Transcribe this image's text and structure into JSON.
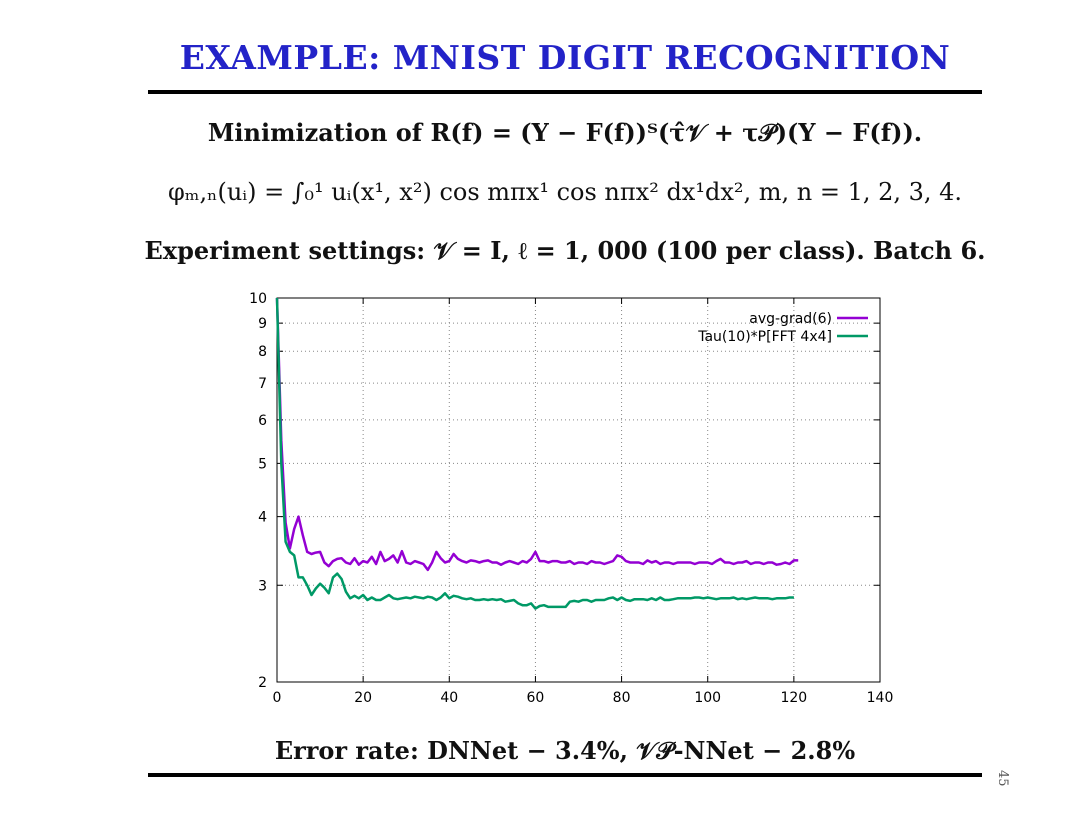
{
  "slide": {
    "title": "EXAMPLE: MNIST DIGIT RECOGNITION",
    "line1": "Minimization of R(f) = (Y − F(f))ᵀ(τ̂𝒱 + τ𝒫)(Y − F(f)).",
    "line2": "φₘ,ₙ(uᵢ) = ∫₀¹ uᵢ(x¹, x²) cos mπx¹ cos nπx² dx¹dx²,   m, n = 1, 2, 3, 4.",
    "line3": "Experiment settings: 𝒱 = I, ℓ = 1, 000 (100 per class). Batch 6.",
    "footer": "Error rate: DNNet − 3.4%,        𝒱𝒫-NNet − 2.8%",
    "page_number": "45"
  },
  "chart_data": {
    "type": "line",
    "xlim": [
      0,
      140
    ],
    "ylim": [
      2,
      10
    ],
    "y_scale": "log",
    "x_ticks": [
      "0",
      "20",
      "40",
      "60",
      "80",
      "100",
      "120",
      "140"
    ],
    "y_ticks": [
      "2",
      "3",
      "4",
      "5",
      "6",
      "7",
      "8",
      "9",
      "10"
    ],
    "grid": true,
    "legend_position": "top-right",
    "series": [
      {
        "name": "avg-grad(6)",
        "color": "#9400d3",
        "x": [
          0,
          1,
          2,
          3,
          4,
          5,
          6,
          7,
          8,
          9,
          10,
          11,
          12,
          13,
          14,
          15,
          16,
          17,
          18,
          19,
          20,
          21,
          22,
          23,
          24,
          25,
          26,
          27,
          28,
          29,
          30,
          31,
          32,
          33,
          34,
          35,
          36,
          37,
          38,
          39,
          40,
          41,
          42,
          43,
          44,
          45,
          46,
          47,
          48,
          49,
          50,
          51,
          52,
          53,
          54,
          55,
          56,
          57,
          58,
          59,
          60,
          61,
          62,
          63,
          64,
          65,
          66,
          67,
          68,
          69,
          70,
          71,
          72,
          73,
          74,
          75,
          76,
          77,
          78,
          79,
          80,
          81,
          82,
          83,
          84,
          85,
          86,
          87,
          88,
          89,
          90,
          91,
          92,
          93,
          94,
          95,
          96,
          97,
          98,
          99,
          100,
          101,
          102,
          103,
          104,
          105,
          106,
          107,
          108,
          109,
          110,
          111,
          112,
          113,
          114,
          115,
          116,
          117,
          118,
          119,
          120,
          121
        ],
        "y": [
          10,
          5.5,
          3.9,
          3.5,
          3.8,
          4.0,
          3.7,
          3.45,
          3.42,
          3.44,
          3.45,
          3.3,
          3.25,
          3.32,
          3.35,
          3.36,
          3.3,
          3.28,
          3.36,
          3.27,
          3.32,
          3.3,
          3.38,
          3.28,
          3.45,
          3.32,
          3.35,
          3.4,
          3.3,
          3.46,
          3.3,
          3.28,
          3.32,
          3.3,
          3.28,
          3.2,
          3.3,
          3.45,
          3.36,
          3.3,
          3.32,
          3.42,
          3.35,
          3.32,
          3.3,
          3.33,
          3.32,
          3.3,
          3.32,
          3.33,
          3.3,
          3.3,
          3.27,
          3.3,
          3.32,
          3.3,
          3.28,
          3.32,
          3.3,
          3.35,
          3.45,
          3.32,
          3.32,
          3.3,
          3.32,
          3.32,
          3.3,
          3.3,
          3.32,
          3.28,
          3.3,
          3.3,
          3.28,
          3.32,
          3.3,
          3.3,
          3.28,
          3.3,
          3.32,
          3.4,
          3.38,
          3.32,
          3.3,
          3.3,
          3.3,
          3.28,
          3.33,
          3.3,
          3.32,
          3.28,
          3.3,
          3.3,
          3.28,
          3.3,
          3.3,
          3.3,
          3.3,
          3.28,
          3.3,
          3.3,
          3.3,
          3.28,
          3.32,
          3.35,
          3.3,
          3.3,
          3.28,
          3.3,
          3.3,
          3.32,
          3.28,
          3.3,
          3.3,
          3.28,
          3.3,
          3.3,
          3.27,
          3.28,
          3.3,
          3.28,
          3.33,
          3.33
        ]
      },
      {
        "name": "Tau(10)*P[FFT 4x4]",
        "color": "#009966",
        "x": [
          0,
          1,
          2,
          3,
          4,
          5,
          6,
          7,
          8,
          9,
          10,
          11,
          12,
          13,
          14,
          15,
          16,
          17,
          18,
          19,
          20,
          21,
          22,
          23,
          24,
          25,
          26,
          27,
          28,
          29,
          30,
          31,
          32,
          33,
          34,
          35,
          36,
          37,
          38,
          39,
          40,
          41,
          42,
          43,
          44,
          45,
          46,
          47,
          48,
          49,
          50,
          51,
          52,
          53,
          54,
          55,
          56,
          57,
          58,
          59,
          60,
          61,
          62,
          63,
          64,
          65,
          66,
          67,
          68,
          69,
          70,
          71,
          72,
          73,
          74,
          75,
          76,
          77,
          78,
          79,
          80,
          81,
          82,
          83,
          84,
          85,
          86,
          87,
          88,
          89,
          90,
          91,
          92,
          93,
          94,
          95,
          96,
          97,
          98,
          99,
          100,
          101,
          102,
          103,
          104,
          105,
          106,
          107,
          108,
          109,
          110,
          111,
          112,
          113,
          114,
          115,
          116,
          117,
          118,
          119,
          120
        ],
        "y": [
          10,
          5.0,
          3.6,
          3.45,
          3.4,
          3.1,
          3.1,
          3.0,
          2.88,
          2.96,
          3.02,
          2.97,
          2.9,
          3.1,
          3.15,
          3.08,
          2.92,
          2.84,
          2.87,
          2.84,
          2.88,
          2.82,
          2.85,
          2.82,
          2.82,
          2.85,
          2.88,
          2.84,
          2.83,
          2.84,
          2.85,
          2.84,
          2.86,
          2.85,
          2.84,
          2.86,
          2.85,
          2.82,
          2.85,
          2.9,
          2.84,
          2.87,
          2.86,
          2.84,
          2.83,
          2.84,
          2.82,
          2.82,
          2.83,
          2.82,
          2.83,
          2.82,
          2.83,
          2.8,
          2.81,
          2.82,
          2.78,
          2.76,
          2.76,
          2.78,
          2.72,
          2.75,
          2.76,
          2.74,
          2.74,
          2.74,
          2.74,
          2.74,
          2.8,
          2.81,
          2.8,
          2.82,
          2.82,
          2.8,
          2.82,
          2.82,
          2.82,
          2.84,
          2.85,
          2.82,
          2.85,
          2.82,
          2.81,
          2.83,
          2.83,
          2.83,
          2.82,
          2.84,
          2.82,
          2.85,
          2.82,
          2.82,
          2.83,
          2.84,
          2.84,
          2.84,
          2.84,
          2.85,
          2.85,
          2.84,
          2.85,
          2.84,
          2.83,
          2.84,
          2.84,
          2.84,
          2.85,
          2.83,
          2.84,
          2.83,
          2.84,
          2.85,
          2.84,
          2.84,
          2.84,
          2.83,
          2.84,
          2.84,
          2.84,
          2.85,
          2.85
        ]
      }
    ]
  }
}
